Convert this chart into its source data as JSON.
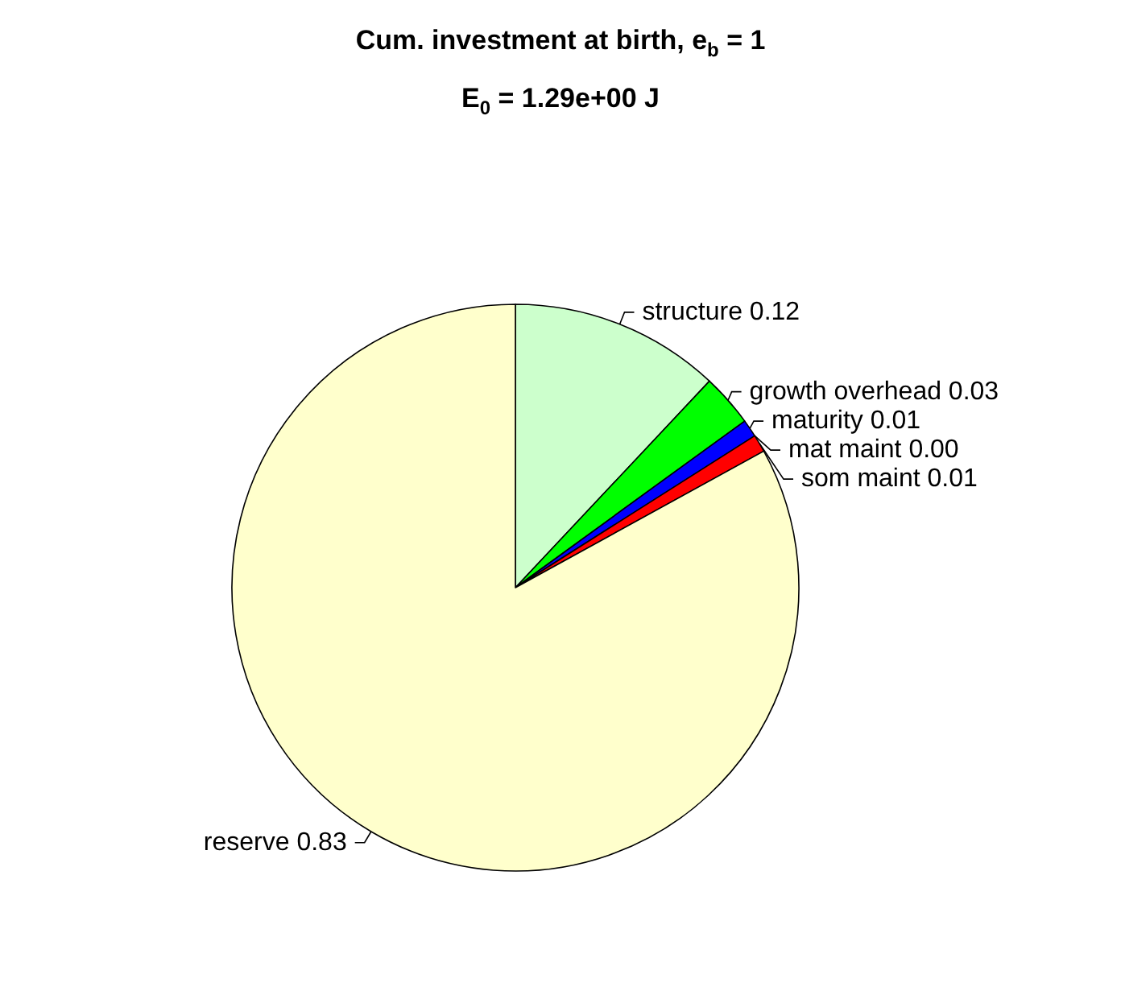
{
  "chart_data": {
    "type": "pie",
    "title": "Cum. investment at birth, e$_{b}$ = 1",
    "subtitle": "E$_{0}$ = 1.29e+00 J",
    "categories": [
      "structure",
      "growth overhead",
      "maturity",
      "mat maint",
      "som maint",
      "reserve"
    ],
    "values": [
      0.12,
      0.03,
      0.01,
      0.0,
      0.01,
      0.83
    ],
    "value_labels": [
      "0.12",
      "0.03",
      "0.01",
      "0.00",
      "0.01",
      "0.83"
    ],
    "colors": [
      "#ccffcc",
      "#00ff00",
      "#0000ff",
      "#ff00ff",
      "#ff0000",
      "#ffffcc"
    ]
  }
}
